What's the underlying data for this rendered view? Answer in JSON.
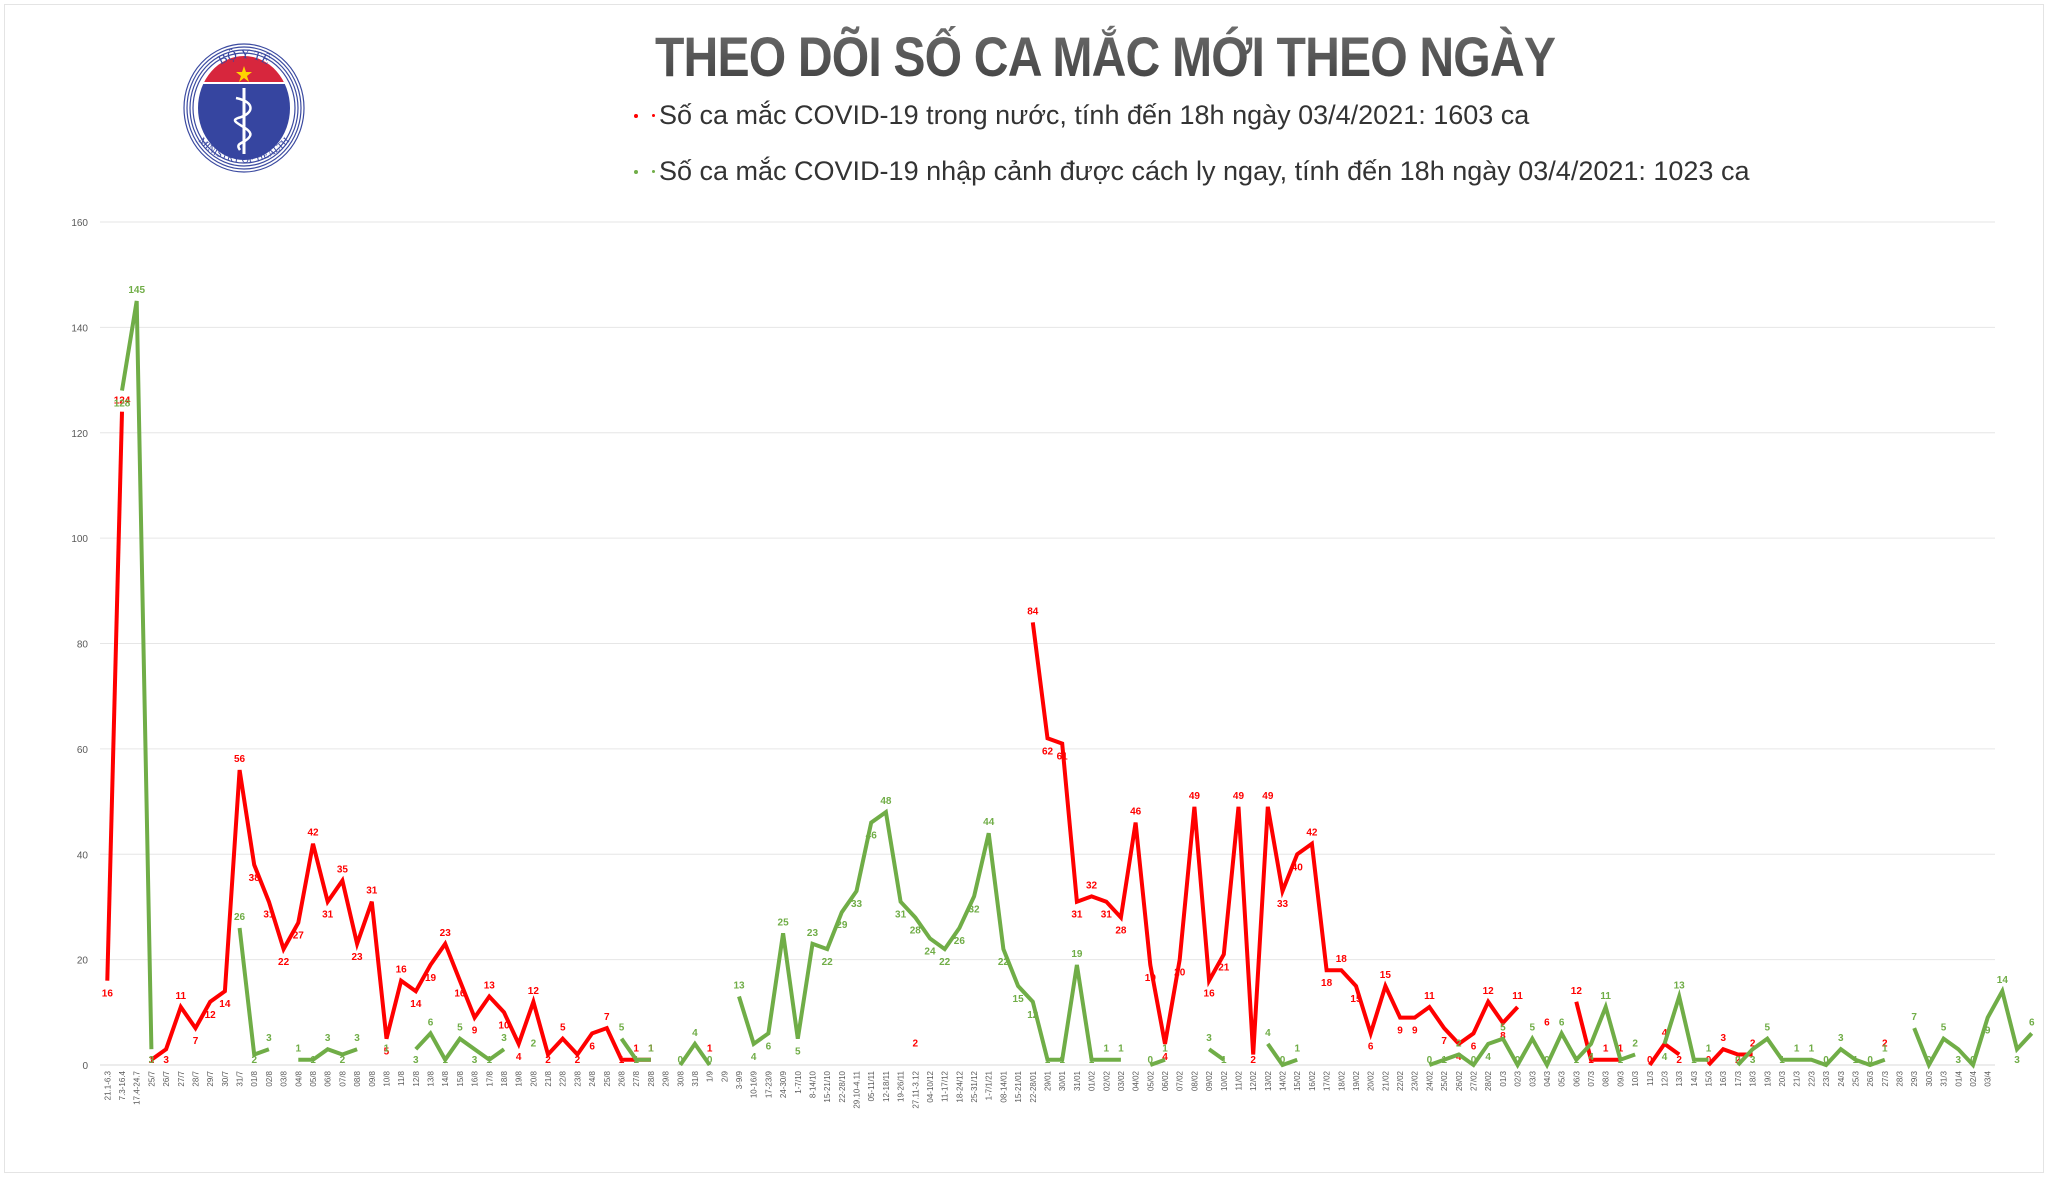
{
  "header": {
    "logo": {
      "top_text": "BỘ Y TẾ",
      "bottom_text": "MINISTRY OF HEALTH"
    },
    "title": "THEO DÕI SỐ CA MẮC MỚI THEO NGÀY",
    "legend": [
      {
        "text": "Số ca mắc COVID-19 trong nước, tính đến 18h ngày 03/4/2021: 1603 ca",
        "color": "#ff0000"
      },
      {
        "text": "Số ca mắc COVID-19 nhập cảnh được cách ly ngay, tính đến 18h ngày 03/4/2021: 1023 ca",
        "color": "#70ad47"
      }
    ]
  },
  "chart_data": {
    "type": "line",
    "title": "THEO DÕI SỐ CA MẮC MỚI THEO NGÀY",
    "xlabel": "",
    "ylabel": "",
    "ylim": [
      0,
      160
    ],
    "yticks": [
      0,
      20,
      40,
      60,
      80,
      100,
      120,
      140,
      160
    ],
    "grid": true,
    "legend_position": "top",
    "colors": {
      "domestic": "#ff0000",
      "imported": "#70ad47",
      "axis_text": "#595959",
      "grid": "#e6e6e6"
    },
    "categories": [
      "21.1-6.3",
      "7.3-16.4",
      "17.4-24.7",
      "25/7",
      "26/7",
      "27/7",
      "28/7",
      "29/7",
      "30/7",
      "31/7",
      "01/8",
      "02/8",
      "03/8",
      "04/8",
      "05/8",
      "06/8",
      "07/8",
      "08/8",
      "09/8",
      "10/8",
      "11/8",
      "12/8",
      "13/8",
      "14/8",
      "15/8",
      "16/8",
      "17/8",
      "18/8",
      "19/8",
      "20/8",
      "21/8",
      "22/8",
      "23/8",
      "24/8",
      "25/8",
      "26/8",
      "27/8",
      "28/8",
      "29/8",
      "30/8",
      "31/8",
      "1/9",
      "2/9",
      "3-9/9",
      "10-16/9",
      "17-23/9",
      "24-30/9",
      "1-7/10",
      "8-14/10",
      "15-21/10",
      "22-28/10",
      "29.10-4.11",
      "05-11/11",
      "12-18/11",
      "19-26/11",
      "27.11-3.12",
      "04-10/12",
      "11-17/12",
      "18-24/12",
      "25-31/12",
      "1-7/1/21",
      "08-14/01",
      "15-21/01",
      "22-28/01",
      "29/01",
      "30/01",
      "31/01",
      "01/02",
      "02/02",
      "03/02",
      "04/02",
      "05/02",
      "06/02",
      "07/02",
      "08/02",
      "09/02",
      "10/02",
      "11/02",
      "12/02",
      "13/02",
      "14/02",
      "15/02",
      "16/02",
      "17/02",
      "18/02",
      "19/02",
      "20/02",
      "21/02",
      "22/02",
      "23/02",
      "24/02",
      "25/02",
      "26/02",
      "27/02",
      "28/02",
      "01/3",
      "02/3",
      "03/3",
      "04/3",
      "05/3",
      "06/3",
      "07/3",
      "08/3",
      "09/3",
      "10/3",
      "11/3",
      "12/3",
      "13/3",
      "14/3",
      "15/3",
      "16/3",
      "17/3",
      "18/3",
      "19/3",
      "20/3",
      "21/3",
      "22/3",
      "23/3",
      "24/3",
      "25/3",
      "26/3",
      "27/3",
      "28/3",
      "29/3",
      "30/3",
      "31/3",
      "01/4",
      "02/4",
      "03/4"
    ],
    "series": [
      {
        "name": "Số ca mắc COVID-19 trong nước",
        "color": "#ff0000",
        "values": [
          16,
          124,
          null,
          1,
          3,
          11,
          7,
          12,
          14,
          56,
          38,
          31,
          22,
          27,
          42,
          31,
          35,
          23,
          31,
          5,
          16,
          14,
          19,
          23,
          16,
          9,
          13,
          10,
          4,
          12,
          2,
          5,
          2,
          6,
          7,
          1,
          1,
          1,
          null,
          null,
          null,
          1,
          null,
          null,
          null,
          null,
          null,
          null,
          null,
          null,
          null,
          null,
          null,
          null,
          null,
          2,
          null,
          null,
          null,
          null,
          null,
          null,
          null,
          84,
          62,
          61,
          31,
          32,
          31,
          28,
          46,
          19,
          4,
          20,
          49,
          16,
          21,
          49,
          2,
          49,
          33,
          40,
          42,
          18,
          18,
          15,
          6,
          15,
          9,
          9,
          11,
          7,
          4,
          6,
          12,
          8,
          11,
          null,
          6,
          null,
          12,
          1,
          1,
          1,
          null,
          0,
          4,
          2,
          null,
          0,
          3,
          2,
          2,
          null,
          null,
          null,
          null,
          null,
          null,
          null,
          null,
          2,
          null,
          null,
          null,
          null,
          null,
          null,
          null,
          null,
          null
        ]
      },
      {
        "name": "Số ca mắc COVID-19 nhập cảnh được cách ly ngay",
        "color": "#70ad47",
        "values": [
          null,
          128,
          145,
          3,
          null,
          null,
          null,
          null,
          null,
          26,
          2,
          3,
          null,
          1,
          1,
          3,
          2,
          3,
          null,
          1,
          null,
          3,
          6,
          1,
          5,
          3,
          1,
          3,
          null,
          2,
          null,
          null,
          null,
          null,
          null,
          5,
          1,
          1,
          null,
          0,
          4,
          0,
          null,
          13,
          4,
          6,
          25,
          5,
          23,
          22,
          29,
          33,
          46,
          48,
          31,
          28,
          24,
          22,
          26,
          32,
          44,
          22,
          15,
          12,
          1,
          1,
          19,
          1,
          1,
          1,
          null,
          0,
          1,
          null,
          null,
          3,
          1,
          null,
          null,
          4,
          0,
          1,
          null,
          null,
          null,
          null,
          null,
          null,
          null,
          null,
          0,
          1,
          2,
          0,
          4,
          5,
          0,
          5,
          0,
          6,
          1,
          4,
          11,
          1,
          2,
          null,
          4,
          13,
          1,
          1,
          null,
          0,
          3,
          5,
          1,
          1,
          1,
          0,
          3,
          1,
          0,
          1,
          null,
          7,
          0,
          5,
          3,
          0,
          9,
          14,
          3,
          6
        ]
      }
    ]
  }
}
